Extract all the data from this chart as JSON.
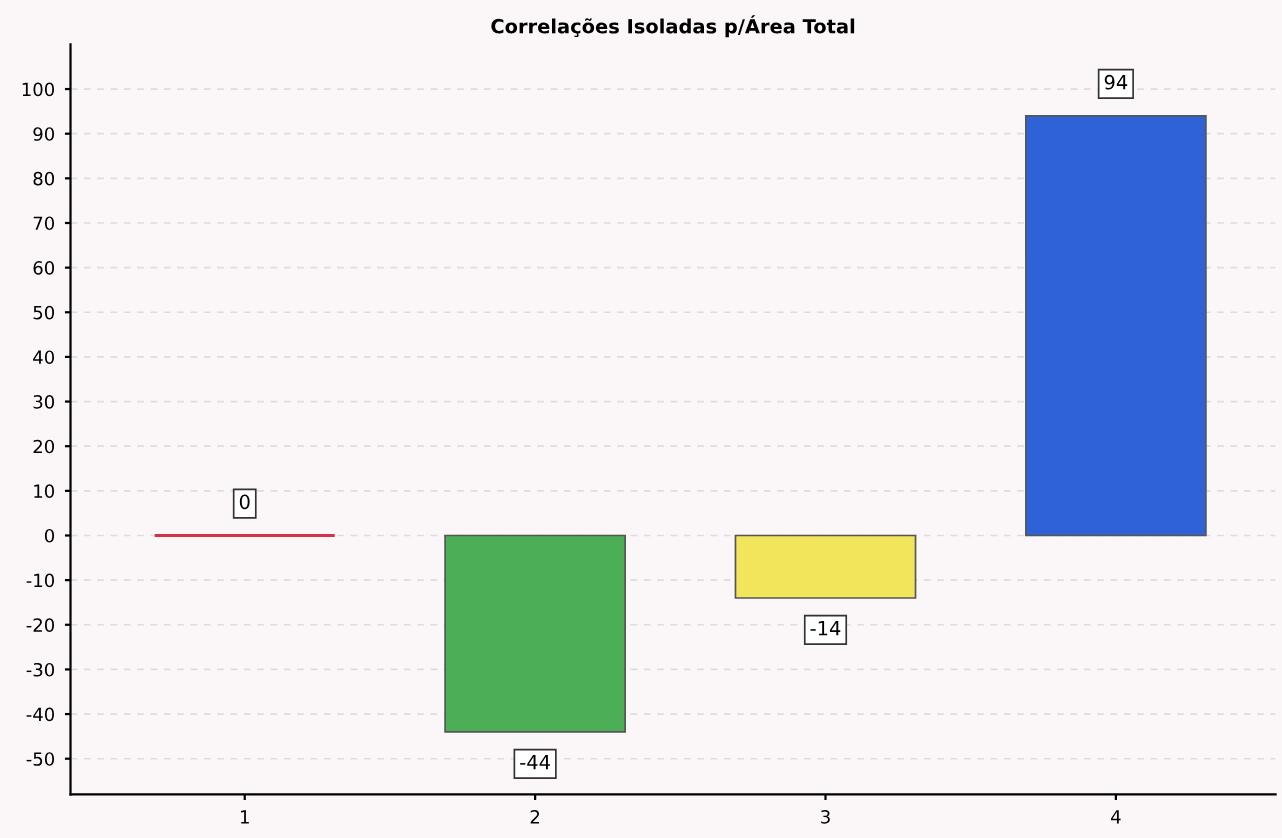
{
  "chart_data": {
    "type": "bar",
    "title": "Correlações Isoladas p/Área Total",
    "categories": [
      "1",
      "2",
      "3",
      "4"
    ],
    "values": [
      0,
      -44,
      -14,
      94
    ],
    "colors": [
      "#d9304a",
      "#4caf57",
      "#f2e55c",
      "#2e62d6"
    ],
    "ylim": [
      -58,
      110
    ],
    "yticks": [
      -50,
      -40,
      -30,
      -20,
      -10,
      0,
      10,
      20,
      30,
      40,
      50,
      60,
      70,
      80,
      90,
      100
    ],
    "grid": "y",
    "data_labels": true
  }
}
